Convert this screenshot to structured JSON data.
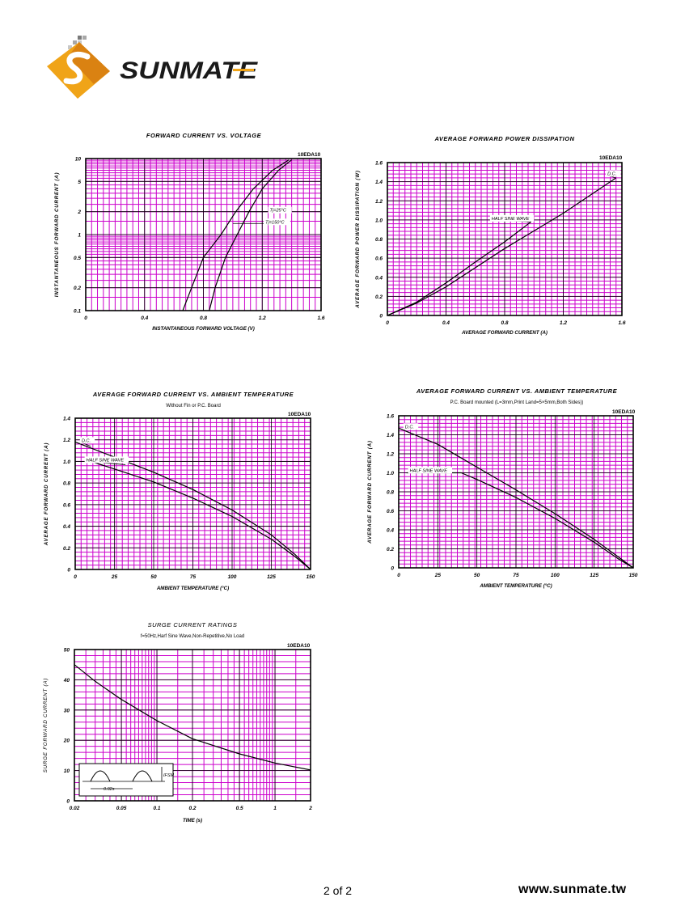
{
  "brand": {
    "name": "SUNMATE",
    "website": "www.sunmate.tw",
    "colors": {
      "logo_orange": "#f0a418",
      "logo_orange_dark": "#c9660f",
      "grid": "#cc00cc",
      "curve": "#000000"
    }
  },
  "footer": {
    "page": "2 of 2",
    "website": "www.sunmate.tw"
  },
  "chart_data": [
    {
      "id": "fwd_iv",
      "type": "line",
      "title": "FORWARD CURRENT VS. VOLTAGE",
      "subtitle": "",
      "part": "10EDA10",
      "xlabel": "INSTANTANEOUS FORWARD VOLTAGE (V)",
      "ylabel": "INSTANTANEOUS FORWARD CURRENT (A)",
      "xscale": "linear",
      "yscale": "log",
      "xlim": [
        0,
        1.6
      ],
      "ylim": [
        0.1,
        10
      ],
      "xticks": [
        {
          "v": 0,
          "l": "0"
        },
        {
          "v": 0.4,
          "l": "0.4"
        },
        {
          "v": 0.8,
          "l": "0.8"
        },
        {
          "v": 1.2,
          "l": "1.2"
        },
        {
          "v": 1.6,
          "l": "1.6"
        }
      ],
      "yticks": [
        {
          "v": 0.1,
          "l": "0.1"
        },
        {
          "v": 0.2,
          "l": "0.2"
        },
        {
          "v": 0.5,
          "l": "0.5"
        },
        {
          "v": 1,
          "l": "1"
        },
        {
          "v": 2,
          "l": "2"
        },
        {
          "v": 5,
          "l": "5"
        },
        {
          "v": 10,
          "l": "10"
        }
      ],
      "grid": true,
      "series": [
        {
          "name": "Tj=25°C",
          "points": [
            [
              0.66,
              0.1
            ],
            [
              0.72,
              0.2
            ],
            [
              0.8,
              0.5
            ],
            [
              0.92,
              1.0
            ],
            [
              1.02,
              2.0
            ],
            [
              1.14,
              4.0
            ],
            [
              1.27,
              7.0
            ],
            [
              1.38,
              9.6
            ]
          ]
        },
        {
          "name": "Tj=150°C",
          "points": [
            [
              0.84,
              0.1
            ],
            [
              0.88,
              0.2
            ],
            [
              0.95,
              0.5
            ],
            [
              1.03,
              1.0
            ],
            [
              1.11,
              2.0
            ],
            [
              1.2,
              4.0
            ],
            [
              1.31,
              7.0
            ],
            [
              1.4,
              9.6
            ]
          ]
        }
      ],
      "annotations": [
        {
          "text": "Tj=25°C",
          "x": 1.24,
          "y": 2.0,
          "ax": 1.08,
          "ay": 2.0
        },
        {
          "text": "Tj=150°C",
          "x": 1.21,
          "y": 1.4,
          "ax": 1.0,
          "ay": 1.4
        }
      ]
    },
    {
      "id": "power_diss",
      "type": "line",
      "title": "AVERAGE FORWARD POWER DISSIPATION",
      "subtitle": "",
      "part": "10EDA10",
      "xlabel": "AVERAGE FORWARD CURRENT (A)",
      "ylabel": "AVERAGE FORWARD POWER DISSIPATION (W)",
      "xscale": "linear",
      "yscale": "linear",
      "xlim": [
        0,
        1.6
      ],
      "ylim": [
        0,
        1.6
      ],
      "xticks": [
        {
          "v": 0,
          "l": "0"
        },
        {
          "v": 0.4,
          "l": "0.4"
        },
        {
          "v": 0.8,
          "l": "0.8"
        },
        {
          "v": 1.2,
          "l": "1.2"
        },
        {
          "v": 1.6,
          "l": "1.6"
        }
      ],
      "yticks": [
        {
          "v": 0,
          "l": "0"
        },
        {
          "v": 0.2,
          "l": "0.2"
        },
        {
          "v": 0.4,
          "l": "0.4"
        },
        {
          "v": 0.6,
          "l": "0.6"
        },
        {
          "v": 0.8,
          "l": "0.8"
        },
        {
          "v": 1.0,
          "l": "1.0"
        },
        {
          "v": 1.2,
          "l": "1.2"
        },
        {
          "v": 1.4,
          "l": "1.4"
        },
        {
          "v": 1.6,
          "l": "1.6"
        }
      ],
      "grid": true,
      "series": [
        {
          "name": "D.C.",
          "points": [
            [
              0,
              0
            ],
            [
              0.2,
              0.13
            ],
            [
              0.4,
              0.3
            ],
            [
              0.8,
              0.7
            ],
            [
              1.2,
              1.07
            ],
            [
              1.56,
              1.44
            ]
          ]
        },
        {
          "name": "HALF SINE WAVE",
          "points": [
            [
              0,
              0
            ],
            [
              0.2,
              0.14
            ],
            [
              0.4,
              0.34
            ],
            [
              0.6,
              0.56
            ],
            [
              0.8,
              0.77
            ],
            [
              0.98,
              0.98
            ]
          ]
        }
      ],
      "annotations": [
        {
          "text": "D.C.",
          "x": 1.49,
          "y": 1.47,
          "ax": 1.56,
          "ay": 1.44
        },
        {
          "text": "HALF SINE WAVE",
          "x": 0.7,
          "y": 1.0,
          "ax": 0.98,
          "ay": 0.98
        }
      ]
    },
    {
      "id": "derate_nofin",
      "type": "line",
      "title": "AVERAGE FORWARD CURRENT VS. AMBIENT TEMPERATURE",
      "subtitle": "Without Fin or P.C. Board",
      "part": "10EDA10",
      "xlabel": "AMBIENT TEMPERATURE (°C)",
      "ylabel": "AVERAGE FORWARD CURRENT (A)",
      "xscale": "linear",
      "yscale": "linear",
      "xlim": [
        0,
        150
      ],
      "ylim": [
        0,
        1.4
      ],
      "xticks": [
        {
          "v": 0,
          "l": "0"
        },
        {
          "v": 25,
          "l": "25"
        },
        {
          "v": 50,
          "l": "50"
        },
        {
          "v": 75,
          "l": "75"
        },
        {
          "v": 100,
          "l": "100"
        },
        {
          "v": 125,
          "l": "125"
        },
        {
          "v": 150,
          "l": "150"
        }
      ],
      "yticks": [
        {
          "v": 0,
          "l": "0"
        },
        {
          "v": 0.2,
          "l": "0.2"
        },
        {
          "v": 0.4,
          "l": "0.4"
        },
        {
          "v": 0.6,
          "l": "0.6"
        },
        {
          "v": 0.8,
          "l": "0.8"
        },
        {
          "v": 1.0,
          "l": "1.0"
        },
        {
          "v": 1.2,
          "l": "1.2"
        },
        {
          "v": 1.4,
          "l": "1.4"
        }
      ],
      "grid": true,
      "series": [
        {
          "name": "D.C.",
          "points": [
            [
              0,
              1.18
            ],
            [
              25,
              1.04
            ],
            [
              50,
              0.9
            ],
            [
              75,
              0.74
            ],
            [
              100,
              0.55
            ],
            [
              125,
              0.32
            ],
            [
              140,
              0.14
            ],
            [
              150,
              0.0
            ]
          ]
        },
        {
          "name": "HALF SINE WAVE",
          "points": [
            [
              10,
              1.0
            ],
            [
              25,
              0.93
            ],
            [
              50,
              0.81
            ],
            [
              75,
              0.66
            ],
            [
              100,
              0.49
            ],
            [
              125,
              0.28
            ],
            [
              140,
              0.12
            ],
            [
              150,
              0.0
            ]
          ]
        }
      ],
      "annotations": [
        {
          "text": "D.C.",
          "x": 3,
          "y": 1.18,
          "ax": 10,
          "ay": 1.14
        },
        {
          "text": "HALF SINE WAVE",
          "x": 6,
          "y": 1.0,
          "ax": 32,
          "ay": 0.97
        }
      ]
    },
    {
      "id": "derate_pcb",
      "type": "line",
      "title": "AVERAGE FORWARD CURRENT VS. AMBIENT TEMPERATURE",
      "subtitle": "P.C. Board mounted (L=3mm,Print Land=5×5mm,Both Sides))",
      "part": "10EDA10",
      "xlabel": "AMBIENT TEMPERATURE (°C)",
      "ylabel": "AVERAGE FORWARD CURRENT (A)",
      "xscale": "linear",
      "yscale": "linear",
      "xlim": [
        0,
        150
      ],
      "ylim": [
        0,
        1.6
      ],
      "xticks": [
        {
          "v": 0,
          "l": "0"
        },
        {
          "v": 25,
          "l": "25"
        },
        {
          "v": 50,
          "l": "50"
        },
        {
          "v": 75,
          "l": "75"
        },
        {
          "v": 100,
          "l": "100"
        },
        {
          "v": 125,
          "l": "125"
        },
        {
          "v": 150,
          "l": "150"
        }
      ],
      "yticks": [
        {
          "v": 0,
          "l": "0"
        },
        {
          "v": 0.2,
          "l": "0.2"
        },
        {
          "v": 0.4,
          "l": "0.4"
        },
        {
          "v": 0.6,
          "l": "0.6"
        },
        {
          "v": 0.8,
          "l": "0.8"
        },
        {
          "v": 1.0,
          "l": "1.0"
        },
        {
          "v": 1.2,
          "l": "1.2"
        },
        {
          "v": 1.4,
          "l": "1.4"
        },
        {
          "v": 1.6,
          "l": "1.6"
        }
      ],
      "grid": true,
      "series": [
        {
          "name": "D.C.",
          "points": [
            [
              0,
              1.47
            ],
            [
              25,
              1.3
            ],
            [
              50,
              1.06
            ],
            [
              75,
              0.82
            ],
            [
              100,
              0.57
            ],
            [
              125,
              0.3
            ],
            [
              140,
              0.12
            ],
            [
              150,
              0.0
            ]
          ]
        },
        {
          "name": "HALF SINE WAVE",
          "points": [
            [
              5,
              1.0
            ],
            [
              40,
              1.0
            ],
            [
              50,
              0.93
            ],
            [
              75,
              0.74
            ],
            [
              100,
              0.52
            ],
            [
              125,
              0.27
            ],
            [
              140,
              0.1
            ],
            [
              150,
              0.0
            ]
          ]
        }
      ],
      "annotations": [
        {
          "text": "D.C.",
          "x": 3,
          "y": 1.47,
          "ax": 3,
          "ay": 1.47
        },
        {
          "text": "HALF SINE WAVE",
          "x": 6,
          "y": 1.01,
          "ax": 6,
          "ay": 1.0
        }
      ]
    },
    {
      "id": "surge",
      "type": "line",
      "title": "SURGE CURRENT RATINGS",
      "subtitle": "f=50Hz,Harf Sine Wave,Non-Repetitive,No Load",
      "part": "10EDA10",
      "xlabel": "TIME (s)",
      "ylabel": "SURGE FORWARD CURRENT (A)",
      "xscale": "log",
      "yscale": "linear",
      "xlim": [
        0.02,
        2
      ],
      "ylim": [
        0,
        50
      ],
      "xticks": [
        {
          "v": 0.02,
          "l": "0.02"
        },
        {
          "v": 0.05,
          "l": "0.05"
        },
        {
          "v": 0.1,
          "l": "0.1"
        },
        {
          "v": 0.2,
          "l": "0.2"
        },
        {
          "v": 0.5,
          "l": "0.5"
        },
        {
          "v": 1,
          "l": "1"
        },
        {
          "v": 2,
          "l": "2"
        }
      ],
      "yticks": [
        {
          "v": 0,
          "l": "0"
        },
        {
          "v": 10,
          "l": "10"
        },
        {
          "v": 20,
          "l": "20"
        },
        {
          "v": 30,
          "l": "30"
        },
        {
          "v": 40,
          "l": "40"
        },
        {
          "v": 50,
          "l": "50"
        }
      ],
      "grid": true,
      "series": [
        {
          "name": "",
          "points": [
            [
              0.02,
              45
            ],
            [
              0.03,
              39.5
            ],
            [
              0.05,
              33.5
            ],
            [
              0.1,
              26.5
            ],
            [
              0.2,
              20.5
            ],
            [
              0.5,
              15.5
            ],
            [
              1,
              12.5
            ],
            [
              2,
              10.2
            ]
          ]
        }
      ],
      "inset": {
        "label_ifsm": "IFSM",
        "label_period": "0.02s"
      }
    }
  ]
}
